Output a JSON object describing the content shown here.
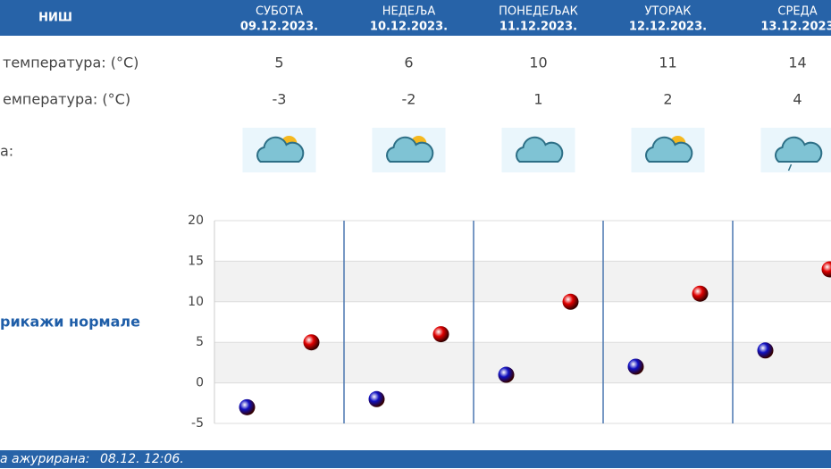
{
  "header": {
    "city": "НИШ"
  },
  "days": [
    {
      "name": "СУБОТА",
      "date": "09.12.2023."
    },
    {
      "name": "НЕДЕЉА",
      "date": "10.12.2023."
    },
    {
      "name": "ПОНЕДЕЉАК",
      "date": "11.12.2023."
    },
    {
      "name": "УТОРАК",
      "date": "12.12.2023."
    },
    {
      "name": "СРЕДА",
      "date": "13.12.2023"
    }
  ],
  "rows": {
    "max_label": "температура: (°C)",
    "min_label": "емпература: (°C)",
    "weather_label": "а:"
  },
  "toggle": "рикажи нормале",
  "footer": {
    "label": "а ажурирана:",
    "time": "08.12. 12:06."
  },
  "chart_data": {
    "type": "scatter",
    "ylim": [
      -5,
      20
    ],
    "yticks": [
      -5,
      0,
      5,
      10,
      15,
      20
    ],
    "series": [
      {
        "name": "max",
        "color": "#e00000",
        "values": [
          5,
          6,
          10,
          11,
          14
        ]
      },
      {
        "name": "min",
        "color": "#1010c0",
        "values": [
          -3,
          -2,
          1,
          2,
          4
        ]
      }
    ]
  }
}
